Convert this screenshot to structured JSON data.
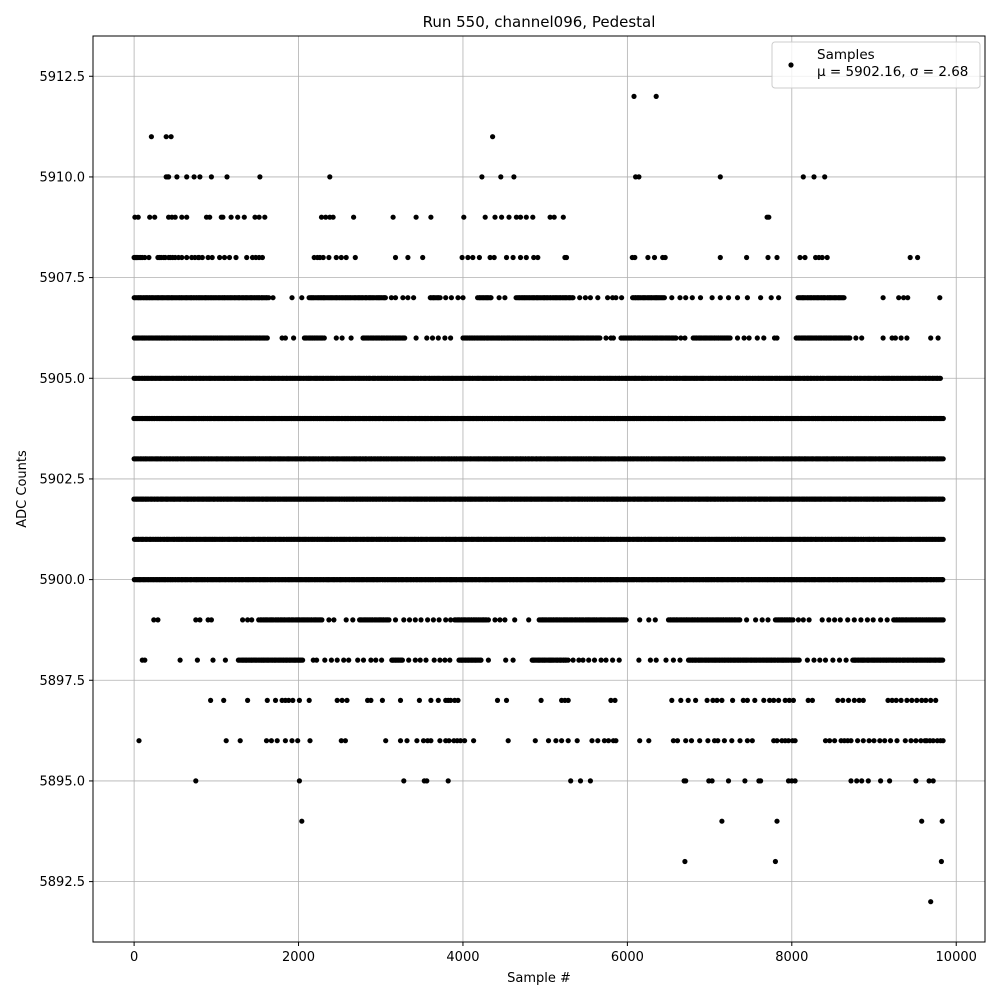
{
  "chart_data": {
    "type": "scatter",
    "title": "Run 550, channel096, Pedestal",
    "xlabel": "Sample #",
    "ylabel": "ADC Counts",
    "xlim": [
      -500,
      10350
    ],
    "ylim": [
      5891.0,
      5913.5
    ],
    "xticks": [
      0,
      2000,
      4000,
      6000,
      8000,
      10000
    ],
    "xtick_labels": [
      "0",
      "2000",
      "4000",
      "6000",
      "8000",
      "10000"
    ],
    "yticks": [
      5892.5,
      5895.0,
      5897.5,
      5900.0,
      5902.5,
      5905.0,
      5907.5,
      5910.0,
      5912.5
    ],
    "ytick_labels": [
      "5892.5",
      "5895.0",
      "5897.5",
      "5900.0",
      "5902.5",
      "5905.0",
      "5907.5",
      "5910.0",
      "5912.5"
    ],
    "grid": true,
    "legend_position": "top-right",
    "series": [
      {
        "name": "Samples",
        "stats": "μ = 5902.16, σ = 2.68",
        "color": "#000000",
        "marker": "dot",
        "bands": [
          {
            "y": 5912,
            "x": [
              6080,
              6350
            ]
          },
          {
            "y": 5911,
            "x": [
              210,
              390,
              450,
              4360
            ]
          },
          {
            "y": 5910,
            "x": [
              390,
              410,
              420,
              520,
              640,
              730,
              800,
              940,
              1130,
              1530,
              2380,
              4230,
              4460,
              4620,
              6100,
              6140,
              7130,
              8140,
              8270,
              8400
            ]
          },
          {
            "y": 5909,
            "x": [
              10,
              50,
              190,
              250,
              420,
              460,
              500,
              580,
              640,
              880,
              920,
              1060,
              1080,
              1180,
              1260,
              1340,
              1470,
              1520,
              1590,
              2280,
              2330,
              2380,
              2420,
              2670,
              3150,
              3430,
              3610,
              4010,
              4270,
              4390,
              4470,
              4560,
              4650,
              4700,
              4770,
              4850,
              5060,
              5110,
              5220,
              7700,
              7720
            ]
          },
          {
            "y": 5908,
            "x": [
              0,
              10,
              20,
              30,
              40,
              60,
              80,
              100,
              130,
              180,
              290,
              310,
              330,
              360,
              380,
              420,
              440,
              470,
              500,
              540,
              580,
              640,
              700,
              740,
              780,
              790,
              830,
              900,
              950,
              1040,
              1100,
              1160,
              1240,
              1370,
              1440,
              1480,
              1520,
              1560,
              2190,
              2230,
              2260,
              2300,
              2370,
              2460,
              2520,
              2580,
              2690,
              3180,
              3330,
              3510,
              3990,
              4060,
              4120,
              4200,
              4330,
              4380,
              4530,
              4610,
              4700,
              4770,
              4860,
              4910,
              5240,
              5260,
              6060,
              6090,
              6250,
              6330,
              6430,
              6460,
              7130,
              7450,
              7710,
              7820,
              8100,
              8160,
              8290,
              8330,
              8370,
              8430,
              9440,
              9530
            ]
          },
          {
            "y": 5907,
            "dense": [
              [
                0,
                1640
              ],
              [
                2130,
                3060
              ],
              [
                3600,
                3720
              ],
              [
                4180,
                4350
              ],
              [
                4650,
                5340
              ],
              [
                6060,
                6460
              ],
              [
                8080,
                8640
              ]
            ],
            "x": [
              1690,
              1920,
              2040,
              3130,
              3180,
              3270,
              3330,
              3400,
              3790,
              3860,
              3940,
              4000,
              4440,
              4510,
              5420,
              5490,
              5550,
              5640,
              5760,
              5820,
              5860,
              5930,
              6540,
              6640,
              6710,
              6790,
              6890,
              7030,
              7130,
              7230,
              7340,
              7460,
              7620,
              7750,
              7840,
              9110,
              9300,
              9360,
              9410,
              9800
            ]
          },
          {
            "y": 5906,
            "dense": [
              [
                0,
                1620
              ],
              [
                2070,
                2320
              ],
              [
                2780,
                3300
              ],
              [
                4000,
                5670
              ],
              [
                5920,
                6600
              ],
              [
                6800,
                7260
              ],
              [
                8050,
                8720
              ]
            ],
            "x": [
              1800,
              1840,
              1940,
              2460,
              2530,
              2640,
              3430,
              3560,
              3630,
              3700,
              3780,
              3850,
              5740,
              5800,
              5830,
              6650,
              6700,
              7340,
              7420,
              7480,
              7580,
              7660,
              7790,
              7820,
              8780,
              8850,
              9110,
              9220,
              9260,
              9330,
              9400,
              9690,
              9780
            ]
          },
          {
            "y": 5905,
            "dense": [
              [
                0,
                9820
              ]
            ]
          },
          {
            "y": 5904,
            "dense": [
              [
                0,
                9840
              ]
            ]
          },
          {
            "y": 5903,
            "dense": [
              [
                0,
                9840
              ]
            ]
          },
          {
            "y": 5902,
            "dense": [
              [
                0,
                9840
              ]
            ]
          },
          {
            "y": 5901,
            "dense": [
              [
                0,
                9840
              ]
            ]
          },
          {
            "y": 5900,
            "dense": [
              [
                0,
                9840
              ]
            ]
          },
          {
            "y": 5899,
            "dense": [
              [
                1520,
                2290
              ],
              [
                2740,
                3100
              ],
              [
                3900,
                4310
              ],
              [
                4930,
                5980
              ],
              [
                6500,
                7380
              ],
              [
                7800,
                8020
              ],
              [
                9240,
                9840
              ]
            ],
            "x": [
              240,
              290,
              750,
              800,
              900,
              940,
              1320,
              1380,
              1430,
              2370,
              2430,
              2580,
              2660,
              3180,
              3280,
              3350,
              3420,
              3490,
              3570,
              3640,
              3710,
              3790,
              3850,
              4390,
              4450,
              4510,
              4630,
              4800,
              6150,
              6260,
              6340,
              7450,
              7560,
              7640,
              7710,
              8080,
              8140,
              8210,
              8370,
              8450,
              8520,
              8590,
              8680,
              8760,
              8840,
              8920,
              8990,
              9080,
              9160
            ]
          },
          {
            "y": 5898,
            "dense": [
              [
                1270,
                2060
              ],
              [
                3130,
                3270
              ],
              [
                3950,
                4230
              ],
              [
                4840,
                5280
              ],
              [
                6740,
                8100
              ],
              [
                8740,
                9840
              ]
            ],
            "x": [
              100,
              130,
              560,
              770,
              960,
              1110,
              2180,
              2220,
              2320,
              2400,
              2470,
              2550,
              2610,
              2720,
              2790,
              2880,
              2940,
              3010,
              3340,
              3420,
              3480,
              3550,
              3650,
              3720,
              3780,
              3840,
              4310,
              4520,
              4610,
              5340,
              5410,
              5460,
              5530,
              5600,
              5680,
              5740,
              5820,
              5900,
              6140,
              6280,
              6350,
              6470,
              6560,
              6640,
              8190,
              8270,
              8340,
              8410,
              8500,
              8580,
              8660
            ]
          },
          {
            "y": 5897,
            "x": [
              930,
              1090,
              1380,
              1620,
              1720,
              1800,
              1840,
              1880,
              1930,
              2010,
              2130,
              2470,
              2530,
              2590,
              2840,
              2880,
              3020,
              3240,
              3470,
              3610,
              3700,
              3790,
              3820,
              3850,
              3900,
              3940,
              4420,
              4530,
              4950,
              5200,
              5240,
              5280,
              5800,
              5850,
              6540,
              6650,
              6740,
              6830,
              6970,
              7040,
              7090,
              7150,
              7280,
              7410,
              7460,
              7550,
              7660,
              7730,
              7780,
              7840,
              7920,
              7970,
              8020,
              8200,
              8250,
              8560,
              8620,
              8690,
              8760,
              8820,
              8870,
              9170,
              9220,
              9270,
              9330,
              9400,
              9460,
              9520,
              9580,
              9630,
              9690,
              9750
            ]
          },
          {
            "y": 5896,
            "x": [
              60,
              1120,
              1290,
              1610,
              1670,
              1740,
              1840,
              1920,
              1990,
              2140,
              2520,
              2570,
              3060,
              3240,
              3320,
              3440,
              3520,
              3570,
              3610,
              3720,
              3790,
              3830,
              3890,
              3930,
              3970,
              4020,
              4130,
              4550,
              4880,
              5040,
              5130,
              5200,
              5280,
              5390,
              5570,
              5640,
              5720,
              5770,
              5830,
              5860,
              6150,
              6260,
              6560,
              6610,
              6710,
              6780,
              6880,
              6980,
              7060,
              7100,
              7180,
              7270,
              7370,
              7460,
              7520,
              7780,
              7820,
              7880,
              7920,
              7960,
              8010,
              8040,
              8410,
              8460,
              8520,
              8600,
              8640,
              8680,
              8720,
              8800,
              8870,
              8940,
              9000,
              9070,
              9130,
              9200,
              9280,
              9380,
              9450,
              9510,
              9570,
              9620,
              9640,
              9680,
              9720,
              9770,
              9810,
              9840
            ]
          },
          {
            "y": 5895,
            "x": [
              750,
              2010,
              3280,
              3530,
              3560,
              3820,
              5310,
              5430,
              5550,
              6690,
              6710,
              6990,
              7030,
              7230,
              7430,
              7600,
              7620,
              7960,
              8000,
              8040,
              8720,
              8790,
              8850,
              8930,
              9080,
              9190,
              9510,
              9670,
              9720
            ]
          },
          {
            "y": 5894,
            "x": [
              2040,
              7150,
              7820,
              9580,
              9830
            ]
          },
          {
            "y": 5893,
            "x": [
              6700,
              7800,
              9820
            ]
          },
          {
            "y": 5892,
            "x": [
              9690
            ]
          }
        ]
      }
    ]
  }
}
